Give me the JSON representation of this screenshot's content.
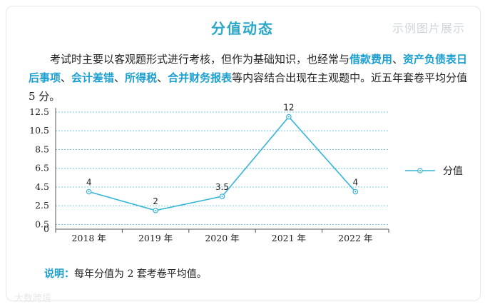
{
  "header": {
    "title": "分值动态",
    "watermark": "示例图片展示"
  },
  "intro": {
    "part1": "考试时主要以客观题形式进行考核，但作为基础知识，也经常与",
    "hl1": "借款费用",
    "sep1": "、",
    "hl2": "资产负债表日后事项",
    "sep2": "、",
    "hl3": "会计差错",
    "sep3": "、",
    "hl4": "所得税",
    "sep4": "、",
    "hl5": "合并财务报表",
    "part2": "等内容结合出现在主观题中。近五年套卷平均分值 5 分。"
  },
  "note": {
    "label": "说明：",
    "text": "每年分值为 2 套考卷平均值。"
  },
  "bottom_watermark": "大数跨境",
  "colors": {
    "accent": "#2aa7c9",
    "line": "#35b4d8",
    "grid": "#73c8e3"
  },
  "chart_data": {
    "type": "line",
    "categories": [
      "2018 年",
      "2019 年",
      "2020 年",
      "2021 年",
      "2022 年"
    ],
    "series": [
      {
        "name": "分值",
        "values": [
          4,
          2,
          3.5,
          12,
          4
        ],
        "labels": [
          "4",
          "2",
          "3.5",
          "12",
          "4"
        ]
      }
    ],
    "yticks": [
      "0",
      "0.5",
      "2.5",
      "4.5",
      "6.5",
      "8.5",
      "10.5",
      "12.5"
    ],
    "ylim": [
      0,
      12.5
    ],
    "grid": true,
    "legend_position": "right",
    "marker": "circle-dot"
  }
}
